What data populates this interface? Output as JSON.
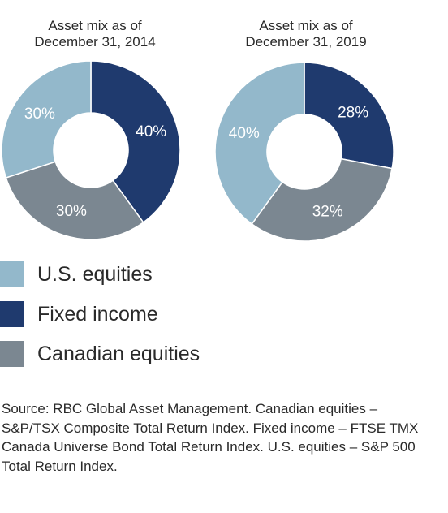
{
  "colors": {
    "us_equities": "#93b8cb",
    "fixed_income": "#1f3a6e",
    "canadian_equities": "#7b8791"
  },
  "chart_data": [
    {
      "type": "pie",
      "title": "Asset mix as of December 31, 2014",
      "title_lines": [
        "Asset mix as of",
        "December 31, 2014"
      ],
      "slices": [
        {
          "label": "Fixed income",
          "value": 40,
          "data_label": "40%",
          "color_key": "fixed_income"
        },
        {
          "label": "Canadian equities",
          "value": 30,
          "data_label": "30%",
          "color_key": "canadian_equities"
        },
        {
          "label": "U.S. equities",
          "value": 30,
          "data_label": "30%",
          "color_key": "us_equities"
        }
      ]
    },
    {
      "type": "pie",
      "title": "Asset mix as of December 31, 2019",
      "title_lines": [
        "Asset mix as of",
        "December 31, 2019"
      ],
      "slices": [
        {
          "label": "Fixed income",
          "value": 28,
          "data_label": "28%",
          "color_key": "fixed_income"
        },
        {
          "label": "Canadian equities",
          "value": 32,
          "data_label": "32%",
          "color_key": "canadian_equities"
        },
        {
          "label": "U.S. equities",
          "value": 40,
          "data_label": "40%",
          "color_key": "us_equities"
        }
      ]
    }
  ],
  "legend": [
    {
      "label": "U.S. equities",
      "color_key": "us_equities"
    },
    {
      "label": "Fixed income",
      "color_key": "fixed_income"
    },
    {
      "label": "Canadian equities",
      "color_key": "canadian_equities"
    }
  ],
  "source_note": "Source: RBC Global Asset Management. Canadian equities – S&P/TSX Composite Total Return Index. Fixed income – FTSE TMX  Canada Universe Bond Total Return Index. U.S. equities – S&P 500 Total Return Index."
}
